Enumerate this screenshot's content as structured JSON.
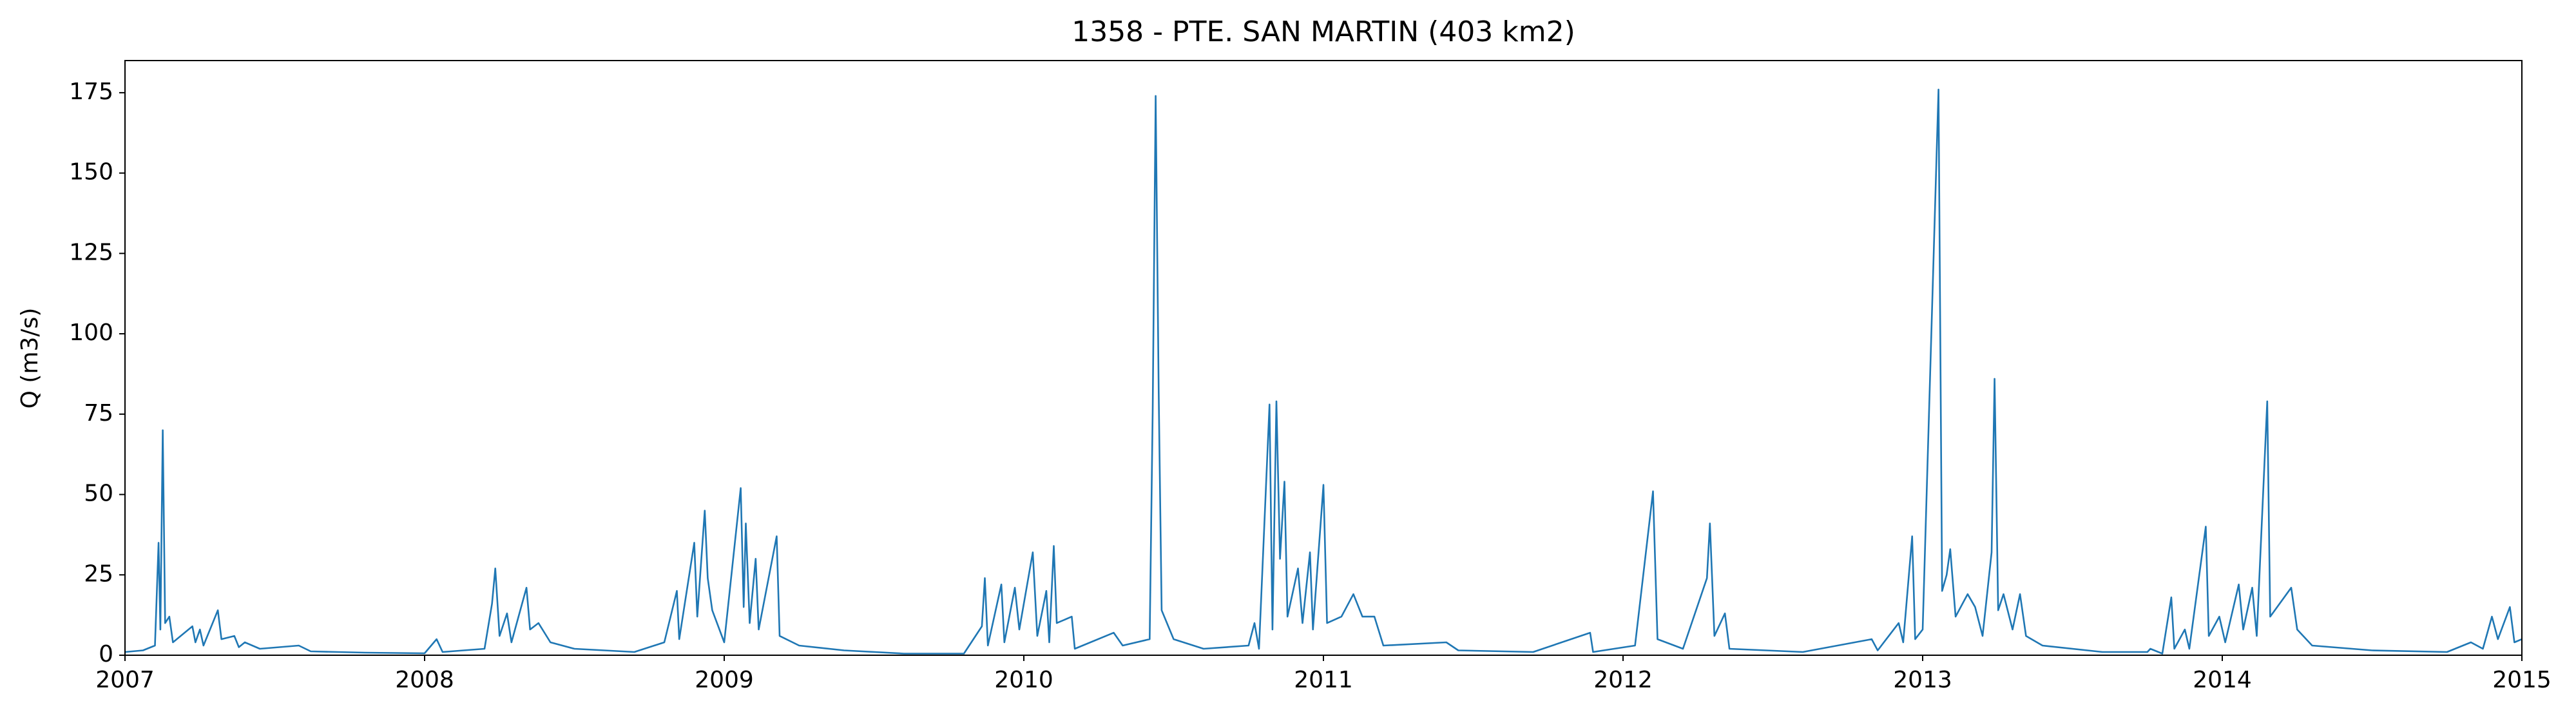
{
  "chart_data": {
    "type": "line",
    "title": "1358 - PTE. SAN MARTIN (403 km2)",
    "y_label": "Q (m3/s)",
    "x": [
      2007.0,
      2007.06,
      2007.1,
      2007.112,
      2007.118,
      2007.126,
      2007.134,
      2007.148,
      2007.16,
      2007.225,
      2007.235,
      2007.25,
      2007.262,
      2007.31,
      2007.322,
      2007.365,
      2007.38,
      2007.4,
      2007.45,
      2007.58,
      2007.62,
      2007.8,
      2008.0,
      2008.04,
      2008.06,
      2008.2,
      2008.225,
      2008.236,
      2008.25,
      2008.275,
      2008.29,
      2008.34,
      2008.352,
      2008.38,
      2008.42,
      2008.5,
      2008.7,
      2008.8,
      2008.842,
      2008.85,
      2008.9,
      2008.91,
      2008.935,
      2008.945,
      2008.96,
      2009.0,
      2009.055,
      2009.065,
      2009.072,
      2009.085,
      2009.105,
      2009.115,
      2009.175,
      2009.185,
      2009.25,
      2009.4,
      2009.6,
      2009.8,
      2009.86,
      2009.87,
      2009.88,
      2009.925,
      2009.935,
      2009.97,
      2009.985,
      2010.03,
      2010.045,
      2010.075,
      2010.085,
      2010.1,
      2010.11,
      2010.16,
      2010.17,
      2010.3,
      2010.33,
      2010.42,
      2010.43,
      2010.44,
      2010.45,
      2010.46,
      2010.5,
      2010.6,
      2010.75,
      2010.77,
      2010.785,
      2010.82,
      2010.83,
      2010.843,
      2010.855,
      2010.87,
      2010.88,
      2010.915,
      2010.93,
      2010.955,
      2010.965,
      2011.0,
      2011.012,
      2011.06,
      2011.1,
      2011.13,
      2011.17,
      2011.2,
      2011.41,
      2011.45,
      2011.7,
      2011.89,
      2011.9,
      2012.04,
      2012.1,
      2012.115,
      2012.2,
      2012.28,
      2012.29,
      2012.305,
      2012.34,
      2012.355,
      2012.6,
      2012.83,
      2012.85,
      2012.92,
      2012.935,
      2012.965,
      2012.975,
      2013.0,
      2013.053,
      2013.065,
      2013.08,
      2013.092,
      2013.11,
      2013.15,
      2013.175,
      2013.2,
      2013.23,
      2013.24,
      2013.252,
      2013.27,
      2013.3,
      2013.325,
      2013.345,
      2013.4,
      2013.6,
      2013.75,
      2013.76,
      2013.8,
      2013.83,
      2013.84,
      2013.875,
      2013.89,
      2013.945,
      2013.955,
      2013.99,
      2014.01,
      2014.055,
      2014.07,
      2014.1,
      2014.115,
      2014.15,
      2014.16,
      2014.23,
      2014.25,
      2014.3,
      2014.5,
      2014.75,
      2014.83,
      2014.87,
      2014.9,
      2014.92,
      2014.96,
      2014.975,
      2015.0
    ],
    "series": [
      {
        "color": "#1f77b4",
        "values": [
          1,
          1.5,
          3,
          35,
          8,
          70,
          10,
          12,
          4,
          9,
          4,
          8,
          3,
          14,
          5,
          6,
          2.5,
          4,
          2,
          3,
          1.2,
          0.8,
          0.6,
          5,
          1,
          2,
          16,
          27,
          6,
          13,
          4,
          21,
          8,
          10,
          4,
          2,
          1,
          4,
          20,
          5,
          35,
          12,
          45,
          24,
          14,
          4,
          52,
          15,
          41,
          10,
          30,
          8,
          37,
          6,
          3,
          1.5,
          0.5,
          0.5,
          9,
          24,
          3,
          22,
          4,
          21,
          8,
          32,
          6,
          20,
          4,
          34,
          10,
          12,
          2,
          7,
          3,
          5,
          76,
          174,
          82,
          14,
          5,
          2,
          3,
          10,
          2,
          78,
          8,
          79,
          30,
          54,
          12,
          27,
          10,
          32,
          8,
          53,
          10,
          12,
          19,
          12,
          12,
          3,
          4,
          1.5,
          1,
          7,
          1,
          3,
          51,
          5,
          2,
          24,
          41,
          6,
          13,
          2,
          1,
          5,
          1.5,
          10,
          4,
          37,
          5,
          8,
          176,
          20,
          25,
          33,
          12,
          19,
          15,
          6,
          32,
          86,
          14,
          19,
          8,
          19,
          6,
          3,
          1,
          1,
          2,
          0.5,
          18,
          2,
          8,
          2,
          40,
          6,
          12,
          4,
          22,
          8,
          21,
          6,
          79,
          12,
          21,
          8,
          3,
          1.5,
          1,
          4,
          2,
          12,
          5,
          15,
          4,
          5
        ]
      }
    ],
    "xlim": [
      2007,
      2015
    ],
    "xticks": [
      2007,
      2008,
      2009,
      2010,
      2011,
      2012,
      2013,
      2014,
      2015
    ],
    "ylim": [
      0,
      185
    ],
    "yticks": [
      0,
      25,
      50,
      75,
      100,
      125,
      150,
      175
    ]
  }
}
